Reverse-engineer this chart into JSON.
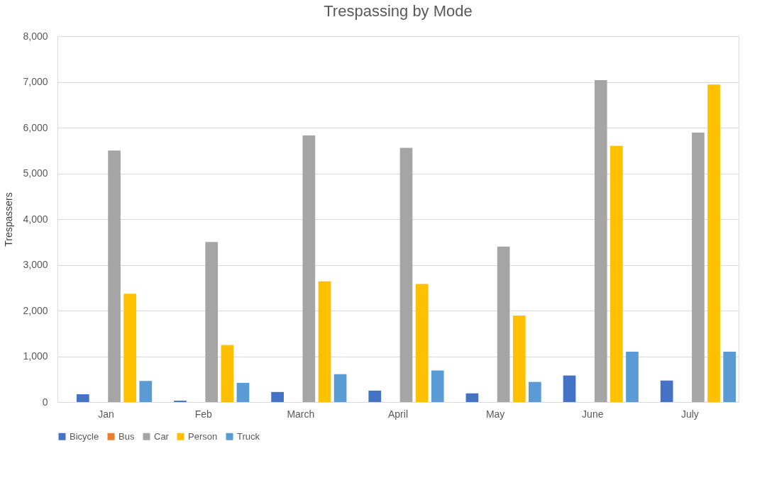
{
  "chart_data": {
    "type": "bar",
    "title": "Trespassing by Mode",
    "ylabel": "Trespassers",
    "categories": [
      "Jan",
      "Feb",
      "March",
      "April",
      "May",
      "June",
      "July"
    ],
    "series": [
      {
        "name": "Bicycle",
        "color": "#4472c4",
        "values": [
          170,
          30,
          220,
          250,
          190,
          580,
          470
        ]
      },
      {
        "name": "Bus",
        "color": "#ed7d31",
        "values": [
          0,
          0,
          0,
          0,
          0,
          0,
          0
        ]
      },
      {
        "name": "Car",
        "color": "#a5a5a5",
        "values": [
          5500,
          3500,
          5830,
          5560,
          3400,
          7040,
          5890
        ]
      },
      {
        "name": "Person",
        "color": "#ffc000",
        "values": [
          2370,
          1250,
          2640,
          2580,
          1890,
          5600,
          6940
        ]
      },
      {
        "name": "Truck",
        "color": "#5b9bd5",
        "values": [
          460,
          420,
          610,
          690,
          440,
          1100,
          1100
        ]
      }
    ],
    "ylim": [
      0,
      8000
    ],
    "yticks": [
      0,
      {
        "value": 1000,
        "label": "1,000"
      },
      {
        "value": 2000,
        "label": "2,000"
      },
      {
        "value": 3000,
        "label": "3,000"
      },
      {
        "value": 4000,
        "label": "4,000"
      },
      {
        "value": 5000,
        "label": "5,000"
      },
      {
        "value": 6000,
        "label": "6,000"
      },
      {
        "value": 7000,
        "label": "7,000"
      },
      {
        "value": 8000,
        "label": "8,000"
      }
    ],
    "grid": "y",
    "legend": "bottom"
  }
}
